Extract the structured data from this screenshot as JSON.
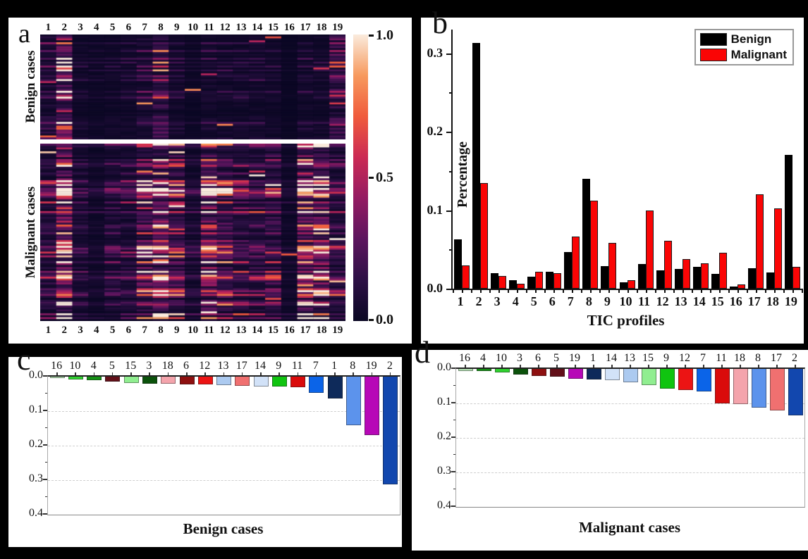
{
  "categories": [
    "1",
    "2",
    "3",
    "4",
    "5",
    "6",
    "7",
    "8",
    "9",
    "10",
    "11",
    "12",
    "13",
    "14",
    "15",
    "16",
    "17",
    "18",
    "19"
  ],
  "panels": {
    "a": {
      "letter": "a",
      "row_groups": [
        "Benign cases",
        "Malignant cases"
      ],
      "colorbar_ticks": [
        "1.0",
        "0.5",
        "0.0"
      ]
    },
    "b": {
      "letter": "b",
      "ylabel": "Percentage",
      "xlabel": "TIC profiles",
      "yticks": [
        "0.0",
        "0.1",
        "0.2",
        "0.3"
      ],
      "legend": [
        {
          "label": "Benign",
          "color": "#000000"
        },
        {
          "label": "Malignant",
          "color": "#fa0505"
        }
      ]
    },
    "c": {
      "letter": "c",
      "title": "Benign cases",
      "yticks": [
        "0.0",
        "0.1",
        "0.2",
        "0.3",
        "0.4"
      ]
    },
    "d": {
      "letter": "d",
      "title": "Malignant cases",
      "yticks": [
        "0.0",
        "0.1",
        "0.2",
        "0.3",
        "0.4"
      ]
    }
  },
  "chart_data": [
    {
      "type": "heatmap",
      "panel": "a",
      "columns": [
        "1",
        "2",
        "3",
        "4",
        "5",
        "6",
        "7",
        "8",
        "9",
        "10",
        "11",
        "12",
        "13",
        "14",
        "15",
        "16",
        "17",
        "18",
        "19"
      ],
      "value_range": [
        0.0,
        1.0
      ],
      "colormap": "rocket-like (dark navy -> crimson -> orange -> cream)",
      "row_groups": [
        {
          "name": "Benign cases",
          "approx_rows": 54,
          "column_intensity": [
            0.063,
            0.313,
            0.02,
            0.011,
            0.015,
            0.022,
            0.047,
            0.14,
            0.029,
            0.008,
            0.031,
            0.023,
            0.025,
            0.028,
            0.019,
            0.003,
            0.026,
            0.021,
            0.17
          ]
        },
        {
          "name": "Malignant cases",
          "approx_rows": 92,
          "column_intensity": [
            0.03,
            0.135,
            0.016,
            0.006,
            0.022,
            0.02,
            0.066,
            0.112,
            0.058,
            0.011,
            0.1,
            0.061,
            0.038,
            0.032,
            0.046,
            0.005,
            0.12,
            0.102,
            0.028
          ]
        }
      ],
      "colorbar_ticks": [
        1.0,
        0.5,
        0.0
      ]
    },
    {
      "type": "bar",
      "panel": "b",
      "categories": [
        "1",
        "2",
        "3",
        "4",
        "5",
        "6",
        "7",
        "8",
        "9",
        "10",
        "11",
        "12",
        "13",
        "14",
        "15",
        "16",
        "17",
        "18",
        "19"
      ],
      "series": [
        {
          "name": "Benign",
          "color": "#000000",
          "values": [
            0.063,
            0.313,
            0.02,
            0.011,
            0.015,
            0.022,
            0.047,
            0.14,
            0.029,
            0.008,
            0.031,
            0.023,
            0.025,
            0.028,
            0.019,
            0.003,
            0.026,
            0.021,
            0.17
          ]
        },
        {
          "name": "Malignant",
          "color": "#fa0505",
          "values": [
            0.03,
            0.135,
            0.016,
            0.006,
            0.022,
            0.02,
            0.066,
            0.112,
            0.058,
            0.011,
            0.1,
            0.061,
            0.038,
            0.032,
            0.046,
            0.005,
            0.12,
            0.102,
            0.028
          ]
        }
      ],
      "title": "",
      "xlabel": "TIC profiles",
      "ylabel": "Percentage",
      "ylim": [
        0.0,
        0.33
      ],
      "ytick_step_major": 0.1,
      "ytick_step_minor": 0.05,
      "legend_position": "top-right",
      "grid": false
    },
    {
      "type": "bar",
      "panel": "c",
      "orientation": "downward",
      "title": "Benign cases",
      "order": [
        "16",
        "10",
        "4",
        "5",
        "15",
        "3",
        "18",
        "6",
        "12",
        "13",
        "17",
        "14",
        "9",
        "11",
        "7",
        "1",
        "8",
        "19",
        "2"
      ],
      "values_by_profile": {
        "1": 0.063,
        "2": 0.313,
        "3": 0.02,
        "4": 0.011,
        "5": 0.015,
        "6": 0.022,
        "7": 0.047,
        "8": 0.14,
        "9": 0.029,
        "10": 0.008,
        "11": 0.031,
        "12": 0.023,
        "13": 0.025,
        "14": 0.028,
        "15": 0.019,
        "16": 0.003,
        "17": 0.026,
        "18": 0.021,
        "19": 0.17
      },
      "ylim": [
        0.0,
        0.4
      ],
      "yticks": [
        0.0,
        0.1,
        0.2,
        0.3,
        0.4
      ],
      "grid": "dashed horizontal at 0.1/0.2/0.3"
    },
    {
      "type": "bar",
      "panel": "d",
      "orientation": "downward",
      "title": "Malignant cases",
      "order": [
        "16",
        "4",
        "10",
        "3",
        "6",
        "5",
        "19",
        "1",
        "14",
        "13",
        "15",
        "9",
        "12",
        "7",
        "11",
        "18",
        "8",
        "17",
        "2"
      ],
      "values_by_profile": {
        "1": 0.03,
        "2": 0.135,
        "3": 0.016,
        "4": 0.006,
        "5": 0.022,
        "6": 0.02,
        "7": 0.066,
        "8": 0.112,
        "9": 0.058,
        "10": 0.011,
        "11": 0.1,
        "12": 0.061,
        "13": 0.038,
        "14": 0.032,
        "15": 0.046,
        "16": 0.005,
        "17": 0.12,
        "18": 0.102,
        "19": 0.028
      },
      "ylim": [
        0.0,
        0.4
      ],
      "yticks": [
        0.0,
        0.1,
        0.2,
        0.3,
        0.4
      ],
      "grid": "dashed horizontal at 0.1/0.2/0.3"
    }
  ],
  "colors": {
    "background": "#000000",
    "bar_red": "#fa0505",
    "bar_black": "#000000",
    "frame_gray": "#a9a9a9",
    "grid_dash": "#cfcfcf",
    "colorbar_stops": [
      "#0a0723",
      "#2d1045",
      "#5c155e",
      "#941b62",
      "#cb2a54",
      "#f05b3c",
      "#f79a5e",
      "#faebdd"
    ],
    "colorbar_positions": [
      0,
      0.15,
      0.3,
      0.45,
      0.6,
      0.72,
      0.85,
      1
    ],
    "profile_colors": {
      "1": "#0e2a5a",
      "2": "#1247ae",
      "3": "#0b520b",
      "4": "#149114",
      "5": "#621019",
      "6": "#8e1010",
      "7": "#0b64e8",
      "8": "#5c93ec",
      "9": "#10c410",
      "10": "#30d230",
      "11": "#da0b0b",
      "12": "#ec1414",
      "13": "#accaf0",
      "14": "#d2e2f8",
      "15": "#90ee90",
      "16": "#b4e2b4",
      "17": "#f07070",
      "18": "#f4a4ac",
      "19": "#b708b7"
    }
  }
}
